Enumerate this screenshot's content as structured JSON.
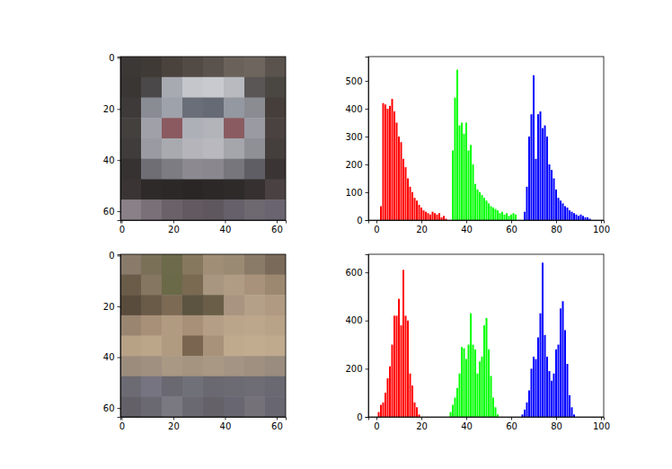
{
  "chart_data": [
    {
      "type": "image",
      "xlim": [
        -0.5,
        63.5
      ],
      "ylim": [
        63.5,
        -0.5
      ],
      "xticks": [
        0,
        20,
        40,
        60
      ],
      "yticks": [
        0,
        20,
        40,
        60
      ],
      "pixels": [
        [
          "#3c3836",
          "#403a36",
          "#4a423c",
          "#524a44",
          "#5a524c",
          "#6a625a",
          "#6e665e",
          "#5a524c"
        ],
        [
          "#3a3634",
          "#4a4848",
          "#a8aab2",
          "#c4c6cc",
          "#c8cad0",
          "#b8bac0",
          "#5a5656",
          "#4a4642"
        ],
        [
          "#3e3a3a",
          "#8a8c94",
          "#9ea2aa",
          "#6a6e78",
          "#666a74",
          "#9498a0",
          "#8a8c92",
          "#463e3a"
        ],
        [
          "#44403e",
          "#a0a0a8",
          "#8a5a60",
          "#aeb0b8",
          "#b2b4ba",
          "#8a5c62",
          "#9a9aa2",
          "#4a4240"
        ],
        [
          "#403c3c",
          "#9a9aa2",
          "#a8aab0",
          "#b4b4ba",
          "#b8b8be",
          "#a4a6ac",
          "#8e9096",
          "#443e3c"
        ],
        [
          "#363232",
          "#6e6e74",
          "#7c7c82",
          "#8c8a90",
          "#8a888e",
          "#76767c",
          "#5e5e64",
          "#3a3434"
        ],
        [
          "#3a3434",
          "#2e2a2a",
          "#2c2828",
          "#2a2626",
          "#2c2828",
          "#2e2a2a",
          "#363030",
          "#4a4242"
        ],
        [
          "#8a8088",
          "#7a7078",
          "#6a6268",
          "#625a60",
          "#5e585e",
          "#66606a",
          "#6e6870",
          "#6a6470"
        ]
      ]
    },
    {
      "type": "bar",
      "xlim": [
        -3.6,
        101.2
      ],
      "ylim": [
        0,
        587
      ],
      "xticks": [
        0,
        20,
        40,
        60,
        80,
        100
      ],
      "yticks": [
        0,
        100,
        200,
        300,
        400,
        500
      ],
      "series": [
        {
          "color": "#ff0000",
          "x": [
            0,
            1,
            2,
            3,
            4,
            5,
            6,
            7,
            8,
            9,
            10,
            11,
            12,
            13,
            14,
            15,
            16,
            17,
            18,
            19,
            20,
            21,
            22,
            23,
            24,
            25,
            26,
            27,
            28,
            29,
            30,
            31
          ],
          "values": [
            0,
            0,
            50,
            420,
            415,
            400,
            410,
            435,
            390,
            350,
            300,
            280,
            220,
            190,
            150,
            120,
            100,
            80,
            70,
            55,
            45,
            35,
            30,
            25,
            20,
            30,
            25,
            20,
            25,
            10,
            15,
            5
          ]
        },
        {
          "color": "#00ff00",
          "x": [
            32,
            33,
            34,
            35,
            36,
            37,
            38,
            39,
            40,
            41,
            42,
            43,
            44,
            45,
            46,
            47,
            48,
            49,
            50,
            51,
            52,
            53,
            54,
            55,
            56,
            57,
            58,
            59,
            60,
            61,
            62,
            63
          ],
          "values": [
            0,
            0,
            250,
            440,
            540,
            340,
            350,
            310,
            350,
            250,
            270,
            200,
            130,
            110,
            100,
            90,
            80,
            70,
            60,
            50,
            45,
            40,
            35,
            25,
            30,
            20,
            25,
            15,
            20,
            25,
            20,
            0
          ]
        },
        {
          "color": "#0000ff",
          "x": [
            64,
            65,
            66,
            67,
            68,
            69,
            70,
            71,
            72,
            73,
            74,
            75,
            76,
            77,
            78,
            79,
            80,
            81,
            82,
            83,
            84,
            85,
            86,
            87,
            88,
            89,
            90,
            91,
            92,
            93,
            94,
            95
          ],
          "values": [
            0,
            0,
            30,
            120,
            300,
            380,
            520,
            220,
            380,
            390,
            330,
            340,
            300,
            200,
            180,
            150,
            110,
            80,
            70,
            60,
            50,
            45,
            35,
            30,
            25,
            20,
            15,
            20,
            15,
            10,
            10,
            5
          ]
        }
      ]
    },
    {
      "type": "image",
      "xlim": [
        -0.5,
        63.5
      ],
      "ylim": [
        63.5,
        -0.5
      ],
      "xticks": [
        0,
        20,
        40,
        60
      ],
      "yticks": [
        0,
        20,
        40,
        60
      ],
      "pixels": [
        [
          "#8a7a6a",
          "#7a7058",
          "#6c6a4a",
          "#86785e",
          "#a08e76",
          "#9a8a74",
          "#8a7a68",
          "#7a6a5a"
        ],
        [
          "#6a5c48",
          "#847660",
          "#6a6a48",
          "#7a6a52",
          "#a89680",
          "#b09c84",
          "#a8927c",
          "#9c8870"
        ],
        [
          "#5a4c3c",
          "#6a5a48",
          "#7c6a54",
          "#5c5440",
          "#6a5e48",
          "#a89480",
          "#b4a088",
          "#b09a82"
        ],
        [
          "#9a8670",
          "#a89078",
          "#b09a80",
          "#a89078",
          "#b49e86",
          "#baa48a",
          "#bca68c",
          "#b8a288"
        ],
        [
          "#b8a286",
          "#bca68a",
          "#b09a80",
          "#7a6650",
          "#a8927a",
          "#c0aa8e",
          "#c2ac90",
          "#c0aa8e"
        ],
        [
          "#9c8c7c",
          "#a09080",
          "#a89884",
          "#a49480",
          "#a89884",
          "#a49484",
          "#a09080",
          "#9a8c7e"
        ],
        [
          "#6c6a72",
          "#767480",
          "#6a6870",
          "#707078",
          "#6a6870",
          "#6c6a72",
          "#6e6c74",
          "#6a6870"
        ],
        [
          "#646068",
          "#6a6870",
          "#7a7880",
          "#6a6870",
          "#646268",
          "#686670",
          "#747278",
          "#686670"
        ]
      ]
    },
    {
      "type": "bar",
      "xlim": [
        -3.6,
        101.2
      ],
      "ylim": [
        0,
        675
      ],
      "xticks": [
        0,
        20,
        40,
        60,
        80,
        100
      ],
      "yticks": [
        0,
        200,
        400,
        600
      ],
      "series": [
        {
          "color": "#ff0000",
          "x": [
            0,
            1,
            2,
            3,
            4,
            5,
            6,
            7,
            8,
            9,
            10,
            11,
            12,
            13,
            14,
            15,
            16,
            17,
            18,
            19,
            20,
            21,
            22,
            23,
            24,
            25,
            26,
            27,
            28,
            29,
            30,
            31
          ],
          "values": [
            0,
            20,
            50,
            60,
            100,
            160,
            210,
            300,
            420,
            420,
            490,
            380,
            610,
            420,
            400,
            180,
            130,
            60,
            40,
            10,
            0,
            0,
            0,
            0,
            0,
            0,
            0,
            0,
            0,
            0,
            0,
            0
          ]
        },
        {
          "color": "#00ff00",
          "x": [
            32,
            33,
            34,
            35,
            36,
            37,
            38,
            39,
            40,
            41,
            42,
            43,
            44,
            45,
            46,
            47,
            48,
            49,
            50,
            51,
            52,
            53,
            54,
            55,
            56,
            57,
            58,
            59,
            60,
            61,
            62,
            63
          ],
          "values": [
            0,
            20,
            50,
            80,
            120,
            180,
            290,
            285,
            240,
            300,
            430,
            300,
            280,
            180,
            230,
            250,
            380,
            410,
            280,
            170,
            80,
            40,
            10,
            0,
            0,
            0,
            0,
            0,
            0,
            0,
            0,
            0
          ]
        },
        {
          "color": "#0000ff",
          "x": [
            64,
            65,
            66,
            67,
            68,
            69,
            70,
            71,
            72,
            73,
            74,
            75,
            76,
            77,
            78,
            79,
            80,
            81,
            82,
            83,
            84,
            85,
            86,
            87,
            88,
            89,
            90,
            91,
            92,
            93,
            94,
            95
          ],
          "values": [
            0,
            10,
            30,
            60,
            110,
            200,
            250,
            240,
            330,
            430,
            640,
            340,
            250,
            190,
            150,
            180,
            280,
            300,
            450,
            480,
            360,
            220,
            90,
            40,
            10,
            0,
            0,
            0,
            0,
            0,
            0,
            0
          ]
        }
      ]
    }
  ]
}
